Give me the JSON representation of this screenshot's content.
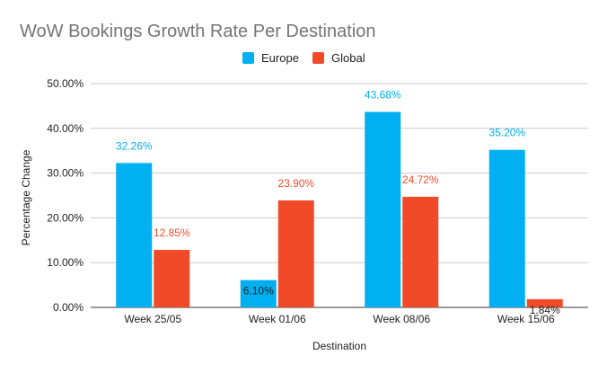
{
  "chart_data": {
    "type": "bar",
    "title": "WoW Bookings Growth Rate Per Destination",
    "xlabel": "Destination",
    "ylabel": "Percentage Change",
    "categories": [
      "Week 25/05",
      "Week 01/06",
      "Week 08/06",
      "Week 15/06"
    ],
    "series": [
      {
        "name": "Europe",
        "color": "#00b0f0",
        "values": [
          32.26,
          6.1,
          43.68,
          35.2
        ],
        "labels": [
          "32.26%",
          "6.10%",
          "43.68%",
          "35.20%"
        ]
      },
      {
        "name": "Global",
        "color": "#f14a29",
        "values": [
          12.85,
          23.9,
          24.72,
          1.84
        ],
        "labels": [
          "12.85%",
          "23.90%",
          "24.72%",
          "1.84%"
        ]
      }
    ],
    "ylim": [
      0,
      50
    ],
    "yticks": [
      0,
      10,
      20,
      30,
      40,
      50
    ],
    "ytick_labels": [
      "0.00%",
      "10.00%",
      "20.00%",
      "30.00%",
      "40.00%",
      "50.00%"
    ],
    "grid": true,
    "legend_position": "top-center",
    "label_inside_bar_color": "#222222"
  }
}
